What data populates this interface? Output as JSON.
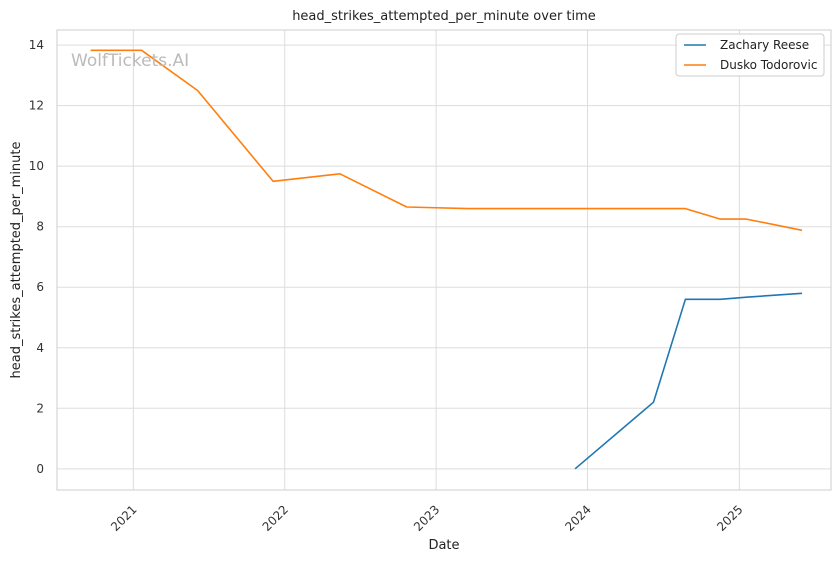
{
  "chart_data": {
    "type": "line",
    "title": "head_strikes_attempted_per_minute over time",
    "xlabel": "Date",
    "ylabel": "head_strikes_attempted_per_minute",
    "watermark": "WolfTickets.AI",
    "xlim": [
      "2020-07-01",
      "2025-08-10"
    ],
    "ylim": [
      -0.7,
      14.5
    ],
    "x_ticks": [
      "2021-01-01",
      "2022-01-01",
      "2023-01-01",
      "2024-01-01",
      "2025-01-01"
    ],
    "x_tick_labels": [
      "2021",
      "2022",
      "2023",
      "2024",
      "2025"
    ],
    "y_ticks": [
      0,
      2,
      4,
      6,
      8,
      10,
      12,
      14
    ],
    "y_tick_labels": [
      "0",
      "2",
      "4",
      "6",
      "8",
      "10",
      "12",
      "14"
    ],
    "grid": true,
    "legend_position": "top-right",
    "series": [
      {
        "name": "Zachary Reese",
        "color": "#1f77b4",
        "x": [
          "2023-12-02",
          "2024-06-08",
          "2024-08-24",
          "2024-11-16",
          "2025-01-18",
          "2025-06-01"
        ],
        "y": [
          0.0,
          2.2,
          5.6,
          5.6,
          5.67,
          5.8
        ]
      },
      {
        "name": "Dusko Todorovic",
        "color": "#ff7f0e",
        "x": [
          "2020-09-20",
          "2021-01-21",
          "2021-06-05",
          "2021-12-04",
          "2022-05-14",
          "2022-10-22",
          "2023-03-18",
          "2024-08-24",
          "2024-11-16",
          "2025-01-18",
          "2025-06-01"
        ],
        "y": [
          13.83,
          13.83,
          12.5,
          9.5,
          9.75,
          8.65,
          8.6,
          8.6,
          8.25,
          8.25,
          7.88
        ]
      }
    ]
  }
}
